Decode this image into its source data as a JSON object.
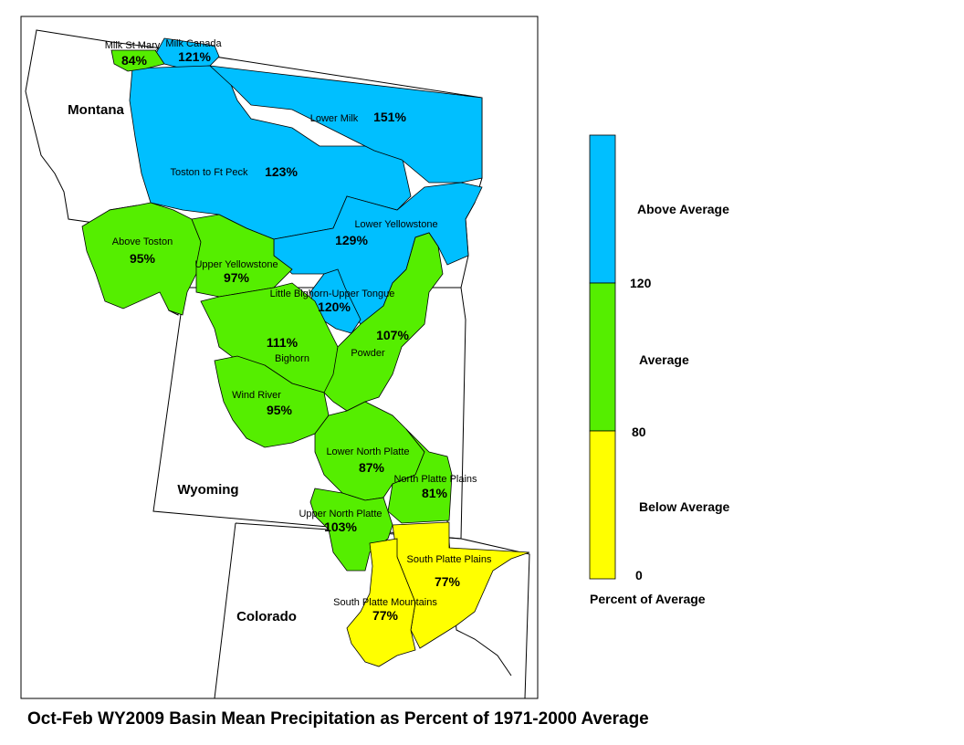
{
  "title": "Oct-Feb WY2009 Basin Mean Precipitation as Percent of 1971-2000 Average",
  "colors": {
    "above": "#00bfff",
    "average": "#55ee00",
    "below": "#ffff00",
    "outline": "#000000"
  },
  "states": [
    {
      "id": "montana",
      "label": "Montana"
    },
    {
      "id": "wyoming",
      "label": "Wyoming"
    },
    {
      "id": "colorado",
      "label": "Colorado"
    }
  ],
  "basins": [
    {
      "id": "milk-st-mary",
      "name": "Milk St Mary",
      "pct": "84%",
      "category": "average"
    },
    {
      "id": "milk-canada",
      "name": "Milk Canada",
      "pct": "121%",
      "category": "above"
    },
    {
      "id": "lower-milk",
      "name": "Lower Milk",
      "pct": "151%",
      "category": "above"
    },
    {
      "id": "toston-ft-peck",
      "name": "Toston to Ft Peck",
      "pct": "123%",
      "category": "above"
    },
    {
      "id": "lower-yellowstone",
      "name": "Lower Yellowstone",
      "pct": "129%",
      "category": "above"
    },
    {
      "id": "above-toston",
      "name": "Above Toston",
      "pct": "95%",
      "category": "average"
    },
    {
      "id": "upper-yellowstone",
      "name": "Upper Yellowstone",
      "pct": "97%",
      "category": "average"
    },
    {
      "id": "little-bighorn",
      "name": "Little Bighorn-Upper Tongue",
      "pct": "120%",
      "category": "above"
    },
    {
      "id": "bighorn",
      "name": "Bighorn",
      "pct": "111%",
      "category": "average"
    },
    {
      "id": "powder",
      "name": "Powder",
      "pct": "107%",
      "category": "average"
    },
    {
      "id": "wind-river",
      "name": "Wind River",
      "pct": "95%",
      "category": "average"
    },
    {
      "id": "lower-north-platte",
      "name": "Lower North Platte",
      "pct": "87%",
      "category": "average"
    },
    {
      "id": "north-platte-plains",
      "name": "North Platte Plains",
      "pct": "81%",
      "category": "average"
    },
    {
      "id": "upper-north-platte",
      "name": "Upper North Platte",
      "pct": "103%",
      "category": "average"
    },
    {
      "id": "south-platte-plains",
      "name": "South Platte Plains",
      "pct": "77%",
      "category": "below"
    },
    {
      "id": "south-platte-mountains",
      "name": "South Platte Mountains",
      "pct": "77%",
      "category": "below"
    }
  ],
  "legend": {
    "title": "Percent of Average",
    "entries": [
      {
        "label": "Above Average",
        "color": "#00bfff"
      },
      {
        "label": "Average",
        "color": "#55ee00"
      },
      {
        "label": "Below Average",
        "color": "#ffff00"
      }
    ],
    "breaks": [
      "120",
      "80",
      "0"
    ]
  }
}
